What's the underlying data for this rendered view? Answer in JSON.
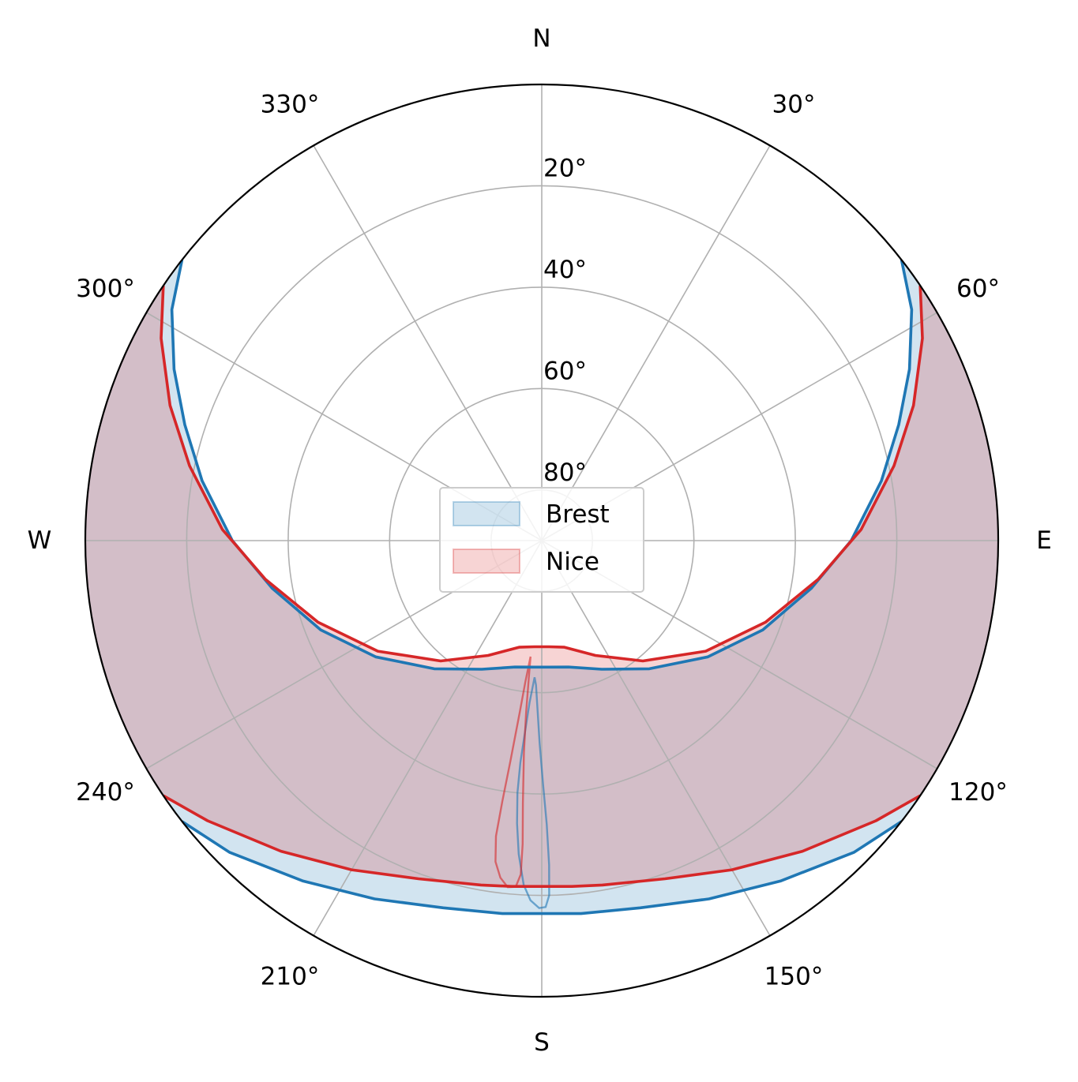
{
  "chart_data": {
    "type": "polar",
    "theta_zero": "N",
    "theta_direction": "clockwise",
    "r_axis": "elevation",
    "r_range_deg": [
      0,
      90
    ],
    "grid": true,
    "direction_labels": [
      {
        "angle": 0,
        "label": "N"
      },
      {
        "angle": 90,
        "label": "E"
      },
      {
        "angle": 180,
        "label": "S"
      },
      {
        "angle": 270,
        "label": "W"
      }
    ],
    "angle_ticks": [
      {
        "angle": 30,
        "label": "30°"
      },
      {
        "angle": 60,
        "label": "60°"
      },
      {
        "angle": 120,
        "label": "120°"
      },
      {
        "angle": 150,
        "label": "150°"
      },
      {
        "angle": 210,
        "label": "210°"
      },
      {
        "angle": 240,
        "label": "240°"
      },
      {
        "angle": 300,
        "label": "300°"
      },
      {
        "angle": 330,
        "label": "330°"
      }
    ],
    "radial_ticks": [
      {
        "value": 20,
        "label": "20°"
      },
      {
        "value": 40,
        "label": "40°"
      },
      {
        "value": 60,
        "label": "60°"
      },
      {
        "value": 80,
        "label": "80°"
      }
    ],
    "legend": {
      "placement": "center"
    },
    "series": [
      {
        "name": "Brest",
        "color": "#1f77b4",
        "summer_elevation": [
          [
            52,
            0
          ],
          [
            58,
            4
          ],
          [
            65,
            10
          ],
          [
            72,
            16
          ],
          [
            80,
            22
          ],
          [
            90,
            29
          ],
          [
            100,
            36
          ],
          [
            112,
            43
          ],
          [
            125,
            50
          ],
          [
            140,
            57
          ],
          [
            155,
            62
          ],
          [
            168,
            64.5
          ],
          [
            177,
            65
          ],
          [
            183,
            65
          ],
          [
            192,
            64.5
          ],
          [
            205,
            62
          ],
          [
            220,
            57
          ],
          [
            235,
            50
          ],
          [
            248,
            43
          ],
          [
            260,
            36
          ],
          [
            270,
            29
          ],
          [
            280,
            22
          ],
          [
            288,
            16
          ],
          [
            295,
            10
          ],
          [
            302,
            4
          ],
          [
            308,
            0
          ]
        ],
        "winter_elevation": [
          [
            128,
            0
          ],
          [
            135,
            3
          ],
          [
            145,
            8
          ],
          [
            155,
            12
          ],
          [
            165,
            15
          ],
          [
            174,
            16
          ],
          [
            186,
            16
          ],
          [
            195,
            15
          ],
          [
            205,
            12
          ],
          [
            215,
            8
          ],
          [
            225,
            3
          ],
          [
            232,
            0
          ]
        ],
        "analemma": [
          [
            183,
            63
          ],
          [
            184.3,
            58
          ],
          [
            185,
            52
          ],
          [
            185.5,
            46
          ],
          [
            185.5,
            40
          ],
          [
            185,
            34
          ],
          [
            184.2,
            28
          ],
          [
            183,
            22
          ],
          [
            181.8,
            19
          ],
          [
            180.4,
            17.5
          ],
          [
            179.4,
            17.7
          ],
          [
            178.8,
            20
          ],
          [
            178.7,
            26
          ],
          [
            179,
            34
          ],
          [
            179.7,
            42
          ],
          [
            180.6,
            50
          ],
          [
            181.5,
            57
          ],
          [
            182.3,
            61.5
          ],
          [
            183,
            63
          ]
        ]
      },
      {
        "name": "Nice",
        "color": "#d62728",
        "summer_elevation": [
          [
            56,
            0
          ],
          [
            62,
            5
          ],
          [
            70,
            12
          ],
          [
            78,
            19
          ],
          [
            88,
            27
          ],
          [
            98,
            35
          ],
          [
            110,
            43
          ],
          [
            124,
            51
          ],
          [
            140,
            59
          ],
          [
            155,
            65
          ],
          [
            168,
            68.5
          ],
          [
            176,
            69
          ],
          [
            184,
            69
          ],
          [
            192,
            68.5
          ],
          [
            205,
            65
          ],
          [
            220,
            59
          ],
          [
            236,
            51
          ],
          [
            250,
            43
          ],
          [
            262,
            35
          ],
          [
            272,
            27
          ],
          [
            282,
            19
          ],
          [
            290,
            12
          ],
          [
            298,
            5
          ],
          [
            304,
            0
          ]
        ],
        "winter_elevation": [
          [
            124,
            0
          ],
          [
            130,
            4
          ],
          [
            140,
            10
          ],
          [
            150,
            15
          ],
          [
            160,
            19
          ],
          [
            170,
            21
          ],
          [
            175,
            21.5
          ],
          [
            185,
            21.5
          ],
          [
            190,
            21
          ],
          [
            200,
            19
          ],
          [
            210,
            15
          ],
          [
            220,
            10
          ],
          [
            230,
            4
          ],
          [
            236,
            0
          ]
        ],
        "analemma": [
          [
            185.5,
            67
          ],
          [
            186.6,
            62
          ],
          [
            187.3,
            56
          ],
          [
            188.1,
            46
          ],
          [
            188.6,
            38
          ],
          [
            188.8,
            31
          ],
          [
            188.2,
            26
          ],
          [
            187,
            23
          ],
          [
            185.6,
            21.3
          ],
          [
            184.3,
            21.5
          ],
          [
            183.6,
            24
          ],
          [
            183.6,
            30
          ],
          [
            184.1,
            38
          ],
          [
            184.8,
            48
          ],
          [
            185.2,
            56
          ],
          [
            185.4,
            63
          ],
          [
            185.5,
            67
          ]
        ]
      }
    ]
  }
}
